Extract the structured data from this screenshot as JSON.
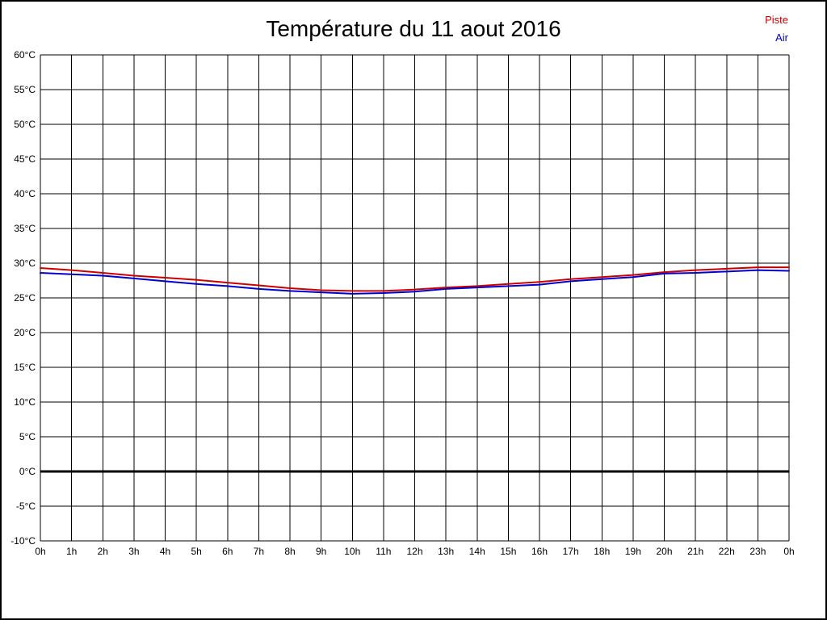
{
  "chart_data": {
    "type": "line",
    "title": "Température du 11 aout 2016",
    "xlabel": "",
    "ylabel": "",
    "ylim": [
      -10,
      60
    ],
    "grid": true,
    "legend_position": "top-right",
    "x_tick_labels": [
      "0h",
      "1h",
      "2h",
      "3h",
      "4h",
      "5h",
      "6h",
      "7h",
      "8h",
      "9h",
      "10h",
      "11h",
      "12h",
      "13h",
      "14h",
      "15h",
      "16h",
      "17h",
      "18h",
      "19h",
      "20h",
      "21h",
      "22h",
      "23h",
      "0h"
    ],
    "y_ticks": [
      {
        "value": 60,
        "label": "60°C"
      },
      {
        "value": 55,
        "label": "55°C"
      },
      {
        "value": 50,
        "label": "50°C"
      },
      {
        "value": 45,
        "label": "45°C"
      },
      {
        "value": 40,
        "label": "40°C"
      },
      {
        "value": 35,
        "label": "35°C"
      },
      {
        "value": 30,
        "label": "30°C"
      },
      {
        "value": 25,
        "label": "25°C"
      },
      {
        "value": 20,
        "label": "20°C"
      },
      {
        "value": 15,
        "label": "15°C"
      },
      {
        "value": 10,
        "label": "10°C"
      },
      {
        "value": 5,
        "label": "5°C"
      },
      {
        "value": 0,
        "label": "0°C"
      },
      {
        "value": -5,
        "label": "-5°C"
      },
      {
        "value": -10,
        "label": "-10°C"
      }
    ],
    "x_hours": [
      0,
      1,
      2,
      3,
      4,
      5,
      6,
      7,
      8,
      9,
      10,
      11,
      12,
      13,
      14,
      15,
      16,
      17,
      18,
      19,
      20,
      21,
      22,
      23,
      24
    ],
    "series": [
      {
        "name": "Piste",
        "color": "#cc0000",
        "values": [
          29.3,
          29.0,
          28.6,
          28.2,
          27.9,
          27.6,
          27.2,
          26.8,
          26.4,
          26.1,
          26.0,
          26.0,
          26.2,
          26.5,
          26.7,
          27.0,
          27.3,
          27.7,
          28.0,
          28.3,
          28.7,
          29.0,
          29.2,
          29.4,
          29.4
        ]
      },
      {
        "name": "Air",
        "color": "#0000cc",
        "values": [
          28.6,
          28.4,
          28.2,
          27.8,
          27.4,
          27.0,
          26.7,
          26.3,
          26.0,
          25.8,
          25.6,
          25.7,
          25.9,
          26.3,
          26.5,
          26.7,
          26.9,
          27.4,
          27.7,
          28.0,
          28.5,
          28.6,
          28.8,
          29.0,
          28.9
        ]
      }
    ],
    "colors": {
      "grid": "#000000",
      "zero_line": "#000000"
    },
    "zero_line": {
      "value": 0,
      "width": 3
    }
  }
}
